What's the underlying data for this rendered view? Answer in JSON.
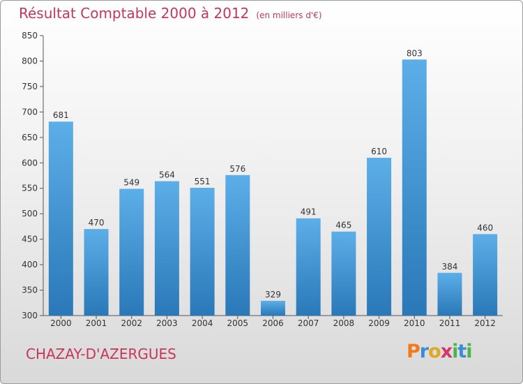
{
  "header": {
    "title": "Résultat Comptable 2000 à 2012",
    "unit": "(en milliers d'€)"
  },
  "footer": {
    "city": "CHAZAY-D'AZERGUES",
    "logo": [
      "Pro",
      "x",
      "iti"
    ]
  },
  "chart_data": {
    "type": "bar",
    "title": "Résultat Comptable 2000 à 2012",
    "subtitle": "(en milliers d'€)",
    "categories": [
      "2000",
      "2001",
      "2002",
      "2003",
      "2004",
      "2005",
      "2006",
      "2007",
      "2008",
      "2009",
      "2010",
      "2011",
      "2012"
    ],
    "values": [
      681,
      470,
      549,
      564,
      551,
      576,
      329,
      491,
      465,
      610,
      803,
      384,
      460
    ],
    "ylim": [
      300,
      850
    ],
    "yticks": [
      300,
      350,
      400,
      450,
      500,
      550,
      600,
      650,
      700,
      750,
      800,
      850
    ],
    "grid": false,
    "colors": {
      "bar_light": "#5caee8",
      "bar_dark": "#2a78b8",
      "title": "#c7365a"
    }
  }
}
